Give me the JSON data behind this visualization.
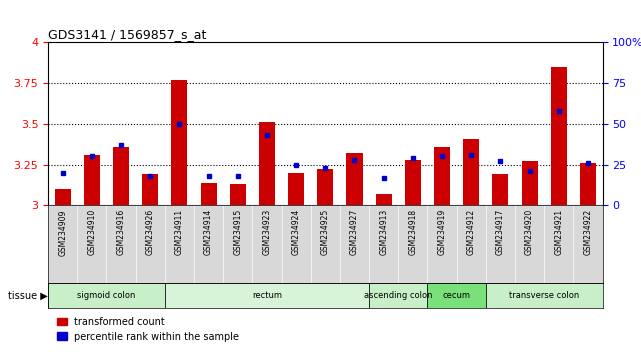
{
  "title": "GDS3141 / 1569857_s_at",
  "samples": [
    "GSM234909",
    "GSM234910",
    "GSM234916",
    "GSM234926",
    "GSM234911",
    "GSM234914",
    "GSM234915",
    "GSM234923",
    "GSM234924",
    "GSM234925",
    "GSM234927",
    "GSM234913",
    "GSM234918",
    "GSM234919",
    "GSM234912",
    "GSM234917",
    "GSM234920",
    "GSM234921",
    "GSM234922"
  ],
  "red_values": [
    3.1,
    3.31,
    3.36,
    3.19,
    3.77,
    3.14,
    3.13,
    3.51,
    3.2,
    3.22,
    3.32,
    3.07,
    3.28,
    3.36,
    3.41,
    3.19,
    3.27,
    3.85,
    3.26
  ],
  "blue_values": [
    20,
    30,
    37,
    18,
    50,
    18,
    18,
    43,
    25,
    23,
    28,
    17,
    29,
    30,
    31,
    27,
    21,
    58,
    26
  ],
  "ylim_left": [
    3.0,
    4.0
  ],
  "ylim_right": [
    0,
    100
  ],
  "yticks_left": [
    3.0,
    3.25,
    3.5,
    3.75,
    4.0
  ],
  "yticks_right": [
    0,
    25,
    50,
    75,
    100
  ],
  "ytick_labels_left": [
    "3",
    "3.25",
    "3.5",
    "3.75",
    "4"
  ],
  "ytick_labels_right": [
    "0",
    "25",
    "50",
    "75",
    "100%"
  ],
  "hlines": [
    3.25,
    3.5,
    3.75
  ],
  "tissue_groups": [
    {
      "label": "sigmoid colon",
      "start": 0,
      "end": 3,
      "color": "#c8f0c8"
    },
    {
      "label": "rectum",
      "start": 4,
      "end": 10,
      "color": "#d8f4d8"
    },
    {
      "label": "ascending colon",
      "start": 11,
      "end": 12,
      "color": "#c8f0c8"
    },
    {
      "label": "cecum",
      "start": 13,
      "end": 14,
      "color": "#7ae07a"
    },
    {
      "label": "transverse colon",
      "start": 15,
      "end": 18,
      "color": "#c8f0c8"
    }
  ],
  "tissue_label": "tissue",
  "bar_color": "#cc0000",
  "dot_color": "#0000cc",
  "bar_width": 0.55,
  "legend_items": [
    "transformed count",
    "percentile rank within the sample"
  ],
  "legend_colors": [
    "#cc0000",
    "#0000cc"
  ],
  "xticklabel_bg": "#d8d8d8"
}
